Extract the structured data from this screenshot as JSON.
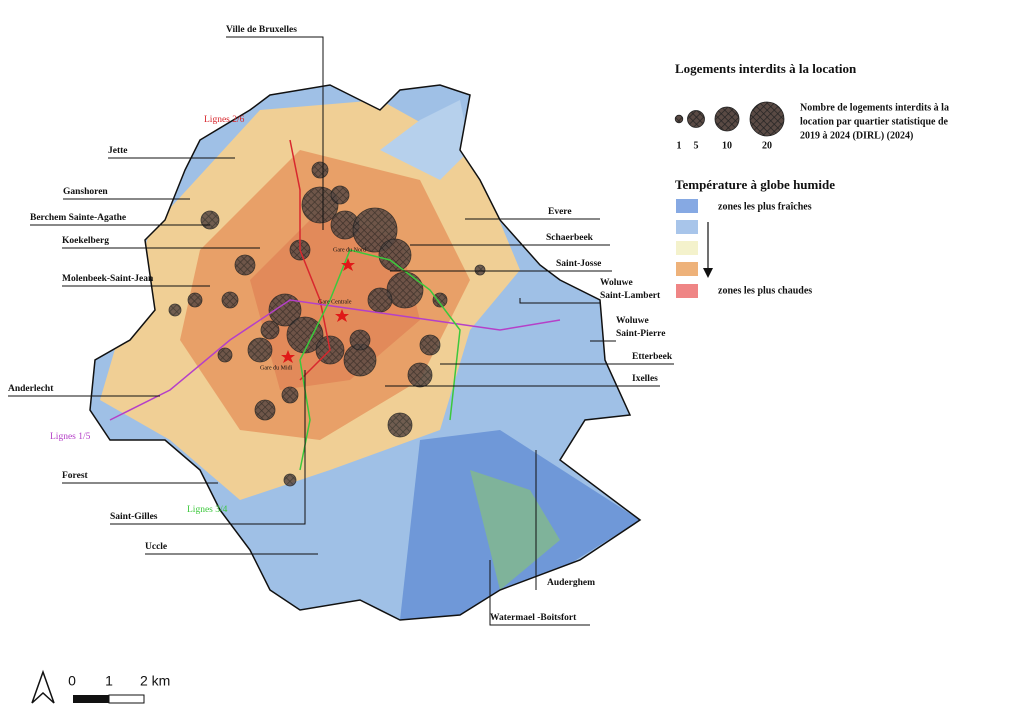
{
  "map": {
    "communes": [
      {
        "label": [
          "Ville de Bruxelles"
        ]
      },
      {
        "label": [
          "Jette"
        ]
      },
      {
        "label": [
          "Ganshoren"
        ]
      },
      {
        "label": [
          "Berchem Sainte-Agathe"
        ]
      },
      {
        "label": [
          "Koekelberg"
        ]
      },
      {
        "label": [
          "Molenbeek-Saint-Jean"
        ]
      },
      {
        "label": [
          "Anderlecht"
        ]
      },
      {
        "label": [
          "Forest"
        ]
      },
      {
        "label": [
          "Saint-Gilles"
        ]
      },
      {
        "label": [
          "Uccle"
        ]
      },
      {
        "label": [
          "Evere"
        ]
      },
      {
        "label": [
          "Schaerbeek"
        ]
      },
      {
        "label": [
          "Saint-Josse"
        ]
      },
      {
        "label": [
          "Woluwe",
          "Saint-Lambert"
        ]
      },
      {
        "label": [
          "Woluwe",
          "Saint-Pierre"
        ]
      },
      {
        "label": [
          "Etterbeek"
        ]
      },
      {
        "label": [
          "Ixelles"
        ]
      },
      {
        "label": [
          "Auderghem"
        ]
      },
      {
        "label": [
          "Watermael -Boitsfort"
        ]
      }
    ],
    "metro_lines": [
      {
        "label": "Lignes 2/6",
        "color": "#d8282e"
      },
      {
        "label": "Lignes 1/5",
        "color": "#b540c8"
      },
      {
        "label": "Lignes 3/4",
        "color": "#3cc83c"
      }
    ],
    "stations": [
      "Gare du Nord",
      "Gare Centrale",
      "Gare du Midi"
    ]
  },
  "legend": {
    "title": "Logements interdits à la location",
    "sizes": [
      1,
      5,
      10,
      20
    ],
    "size_description": [
      "Nombre de logements interdits à la",
      "location par quartier statistique de",
      "2019 à 2024 (DIRL) (2024)"
    ],
    "temperature_title": "Température à globe humide",
    "temperature_colors": [
      "#86a9e3",
      "#a8c5ea",
      "#f4f2cc",
      "#eeb27a",
      "#ef8585"
    ],
    "coolest_label": "zones les plus fraîches",
    "hottest_label": "zones les plus chaudes"
  },
  "scale": {
    "labels": [
      "0",
      "1",
      "2 km"
    ]
  }
}
